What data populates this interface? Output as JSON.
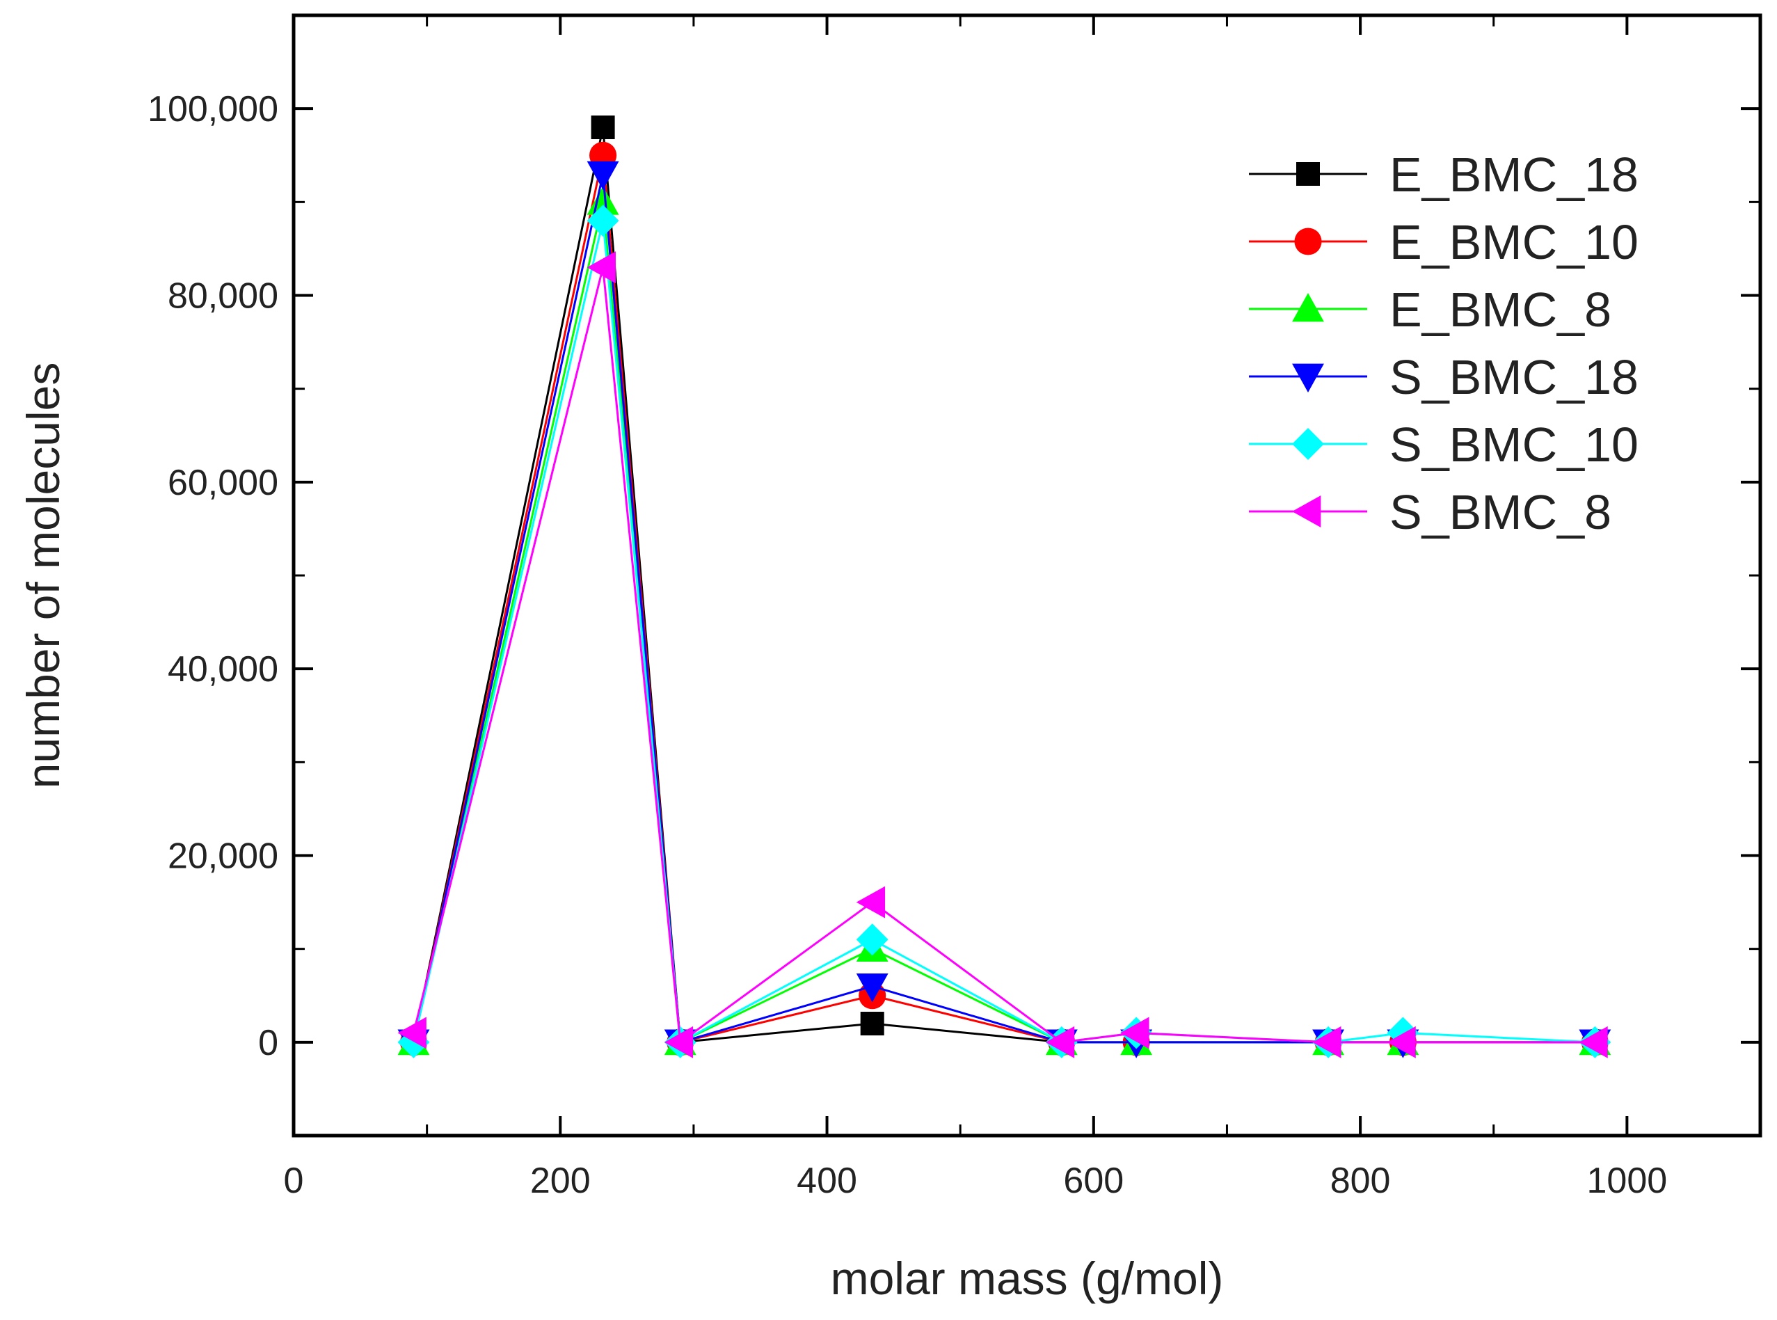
{
  "chart_data": {
    "type": "line",
    "title": "",
    "xlabel": "molar mass (g/mol)",
    "ylabel": "number of molecules",
    "xlim": [
      0,
      1100
    ],
    "ylim": [
      -10000,
      110000
    ],
    "xticks": [
      0,
      200,
      400,
      600,
      800,
      1000
    ],
    "xtick_labels": [
      "0",
      "200",
      "400",
      "600",
      "800",
      "1000"
    ],
    "yticks": [
      0,
      20000,
      40000,
      60000,
      80000,
      100000
    ],
    "ytick_labels": [
      "0",
      "20,000",
      "40,000",
      "60,000",
      "80,000",
      "100,000"
    ],
    "x": [
      90,
      232,
      290,
      434,
      576,
      632,
      776,
      832,
      976
    ],
    "grid": false,
    "legend_position": "top-right",
    "series": [
      {
        "name": "E_BMC_18",
        "color": "#000000",
        "marker": "square",
        "values": [
          0,
          98000,
          0,
          2000,
          0,
          0,
          0,
          0,
          0
        ]
      },
      {
        "name": "E_BMC_10",
        "color": "#ff0000",
        "marker": "circle",
        "values": [
          0,
          95000,
          0,
          5000,
          0,
          0,
          0,
          0,
          0
        ]
      },
      {
        "name": "E_BMC_8",
        "color": "#00ff00",
        "marker": "triangle-up",
        "values": [
          0,
          90000,
          0,
          10000,
          0,
          0,
          0,
          0,
          0
        ]
      },
      {
        "name": "S_BMC_18",
        "color": "#0000ff",
        "marker": "triangle-down",
        "values": [
          0,
          93000,
          0,
          6000,
          0,
          0,
          0,
          0,
          0
        ]
      },
      {
        "name": "S_BMC_10",
        "color": "#00ffff",
        "marker": "diamond",
        "values": [
          0,
          88000,
          0,
          11000,
          0,
          1000,
          0,
          1000,
          0
        ]
      },
      {
        "name": "S_BMC_8",
        "color": "#ff00ff",
        "marker": "triangle-left",
        "values": [
          1000,
          83000,
          0,
          15000,
          0,
          1000,
          0,
          0,
          0
        ]
      }
    ]
  }
}
